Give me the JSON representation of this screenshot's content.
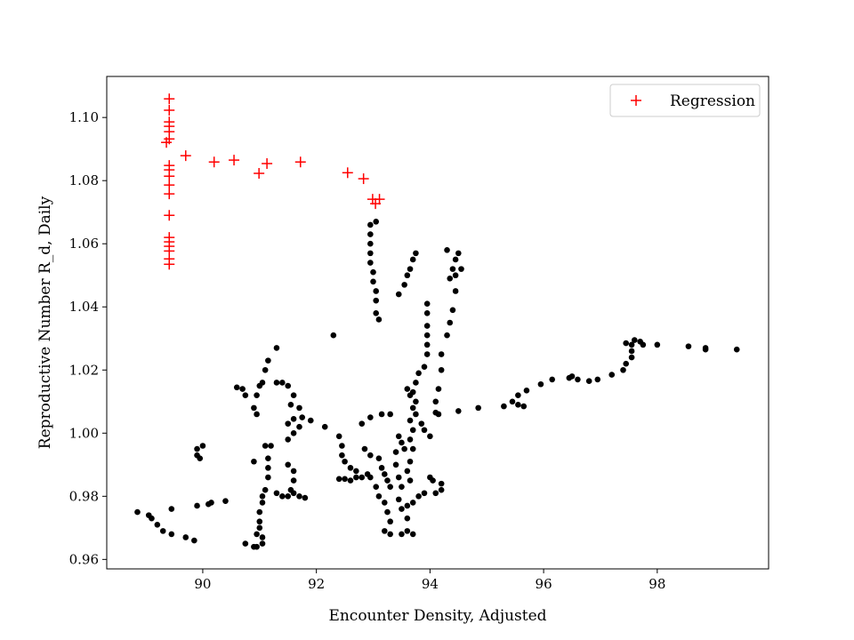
{
  "chart_data": {
    "type": "scatter",
    "title": "",
    "xlabel": "Encounter Density, Adjusted",
    "ylabel": "Reproductive Number R_d, Daily",
    "xlim": [
      88.31,
      99.96
    ],
    "ylim": [
      0.957,
      1.113
    ],
    "xticks": [
      90,
      92,
      94,
      96,
      98
    ],
    "yticks": [
      0.96,
      0.98,
      1.0,
      1.02,
      1.04,
      1.06,
      1.08,
      1.1
    ],
    "xtick_labels": [
      "90",
      "92",
      "94",
      "96",
      "98"
    ],
    "ytick_labels": [
      "0.96",
      "0.98",
      "1.00",
      "1.02",
      "1.04",
      "1.06",
      "1.08",
      "1.10"
    ],
    "grid": false,
    "legend": {
      "position": "top-right",
      "entries": [
        "Regression"
      ]
    },
    "series": [
      {
        "name": "",
        "marker": "circle",
        "color": "#000000",
        "points": [
          [
            88.85,
            0.975
          ],
          [
            89.05,
            0.974
          ],
          [
            89.1,
            0.973
          ],
          [
            89.2,
            0.971
          ],
          [
            89.3,
            0.969
          ],
          [
            89.45,
            0.976
          ],
          [
            89.45,
            0.968
          ],
          [
            89.7,
            0.967
          ],
          [
            89.85,
            0.966
          ],
          [
            89.9,
            0.977
          ],
          [
            90.1,
            0.9775
          ],
          [
            90.15,
            0.978
          ],
          [
            90.4,
            0.9785
          ],
          [
            89.9,
            0.995
          ],
          [
            89.9,
            0.993
          ],
          [
            89.95,
            0.992
          ],
          [
            90.0,
            0.996
          ],
          [
            90.75,
            0.965
          ],
          [
            90.9,
            0.964
          ],
          [
            90.95,
            0.964
          ],
          [
            91.05,
            0.965
          ],
          [
            91.05,
            0.967
          ],
          [
            91.0,
            0.97
          ],
          [
            91.0,
            0.972
          ],
          [
            91.0,
            0.975
          ],
          [
            91.05,
            0.978
          ],
          [
            91.05,
            0.98
          ],
          [
            90.95,
            0.968
          ],
          [
            91.1,
            0.982
          ],
          [
            91.15,
            0.986
          ],
          [
            91.15,
            0.989
          ],
          [
            91.15,
            0.992
          ],
          [
            91.2,
            0.996
          ],
          [
            91.1,
            0.996
          ],
          [
            90.9,
            0.991
          ],
          [
            91.3,
            0.981
          ],
          [
            91.4,
            0.98
          ],
          [
            91.5,
            0.98
          ],
          [
            91.6,
            0.981
          ],
          [
            91.7,
            0.98
          ],
          [
            91.8,
            0.9795
          ],
          [
            91.55,
            0.982
          ],
          [
            91.6,
            0.985
          ],
          [
            91.6,
            0.988
          ],
          [
            91.5,
            0.99
          ],
          [
            91.5,
            0.998
          ],
          [
            91.6,
            1.0
          ],
          [
            91.7,
            1.002
          ],
          [
            91.75,
            1.005
          ],
          [
            91.7,
            1.008
          ],
          [
            91.5,
            1.003
          ],
          [
            91.55,
            1.009
          ],
          [
            91.6,
            1.012
          ],
          [
            91.5,
            1.015
          ],
          [
            91.4,
            1.016
          ],
          [
            91.3,
            1.016
          ],
          [
            91.05,
            1.016
          ],
          [
            91.0,
            1.015
          ],
          [
            90.95,
            1.012
          ],
          [
            90.9,
            1.008
          ],
          [
            90.75,
            1.012
          ],
          [
            90.7,
            1.014
          ],
          [
            90.6,
            1.0145
          ],
          [
            91.1,
            1.02
          ],
          [
            91.15,
            1.023
          ],
          [
            91.3,
            1.027
          ],
          [
            90.95,
            1.006
          ],
          [
            91.6,
            1.0045
          ],
          [
            91.9,
            1.004
          ],
          [
            92.15,
            1.002
          ],
          [
            92.3,
            1.031
          ],
          [
            92.4,
            0.999
          ],
          [
            92.45,
            0.996
          ],
          [
            92.45,
            0.993
          ],
          [
            92.5,
            0.991
          ],
          [
            92.6,
            0.989
          ],
          [
            92.7,
            0.988
          ],
          [
            92.9,
            0.987
          ],
          [
            92.4,
            0.9855
          ],
          [
            92.5,
            0.9855
          ],
          [
            92.6,
            0.985
          ],
          [
            92.7,
            0.986
          ],
          [
            92.8,
            0.986
          ],
          [
            92.95,
            0.986
          ],
          [
            92.85,
            0.995
          ],
          [
            92.95,
            0.993
          ],
          [
            93.1,
            0.992
          ],
          [
            93.15,
            0.989
          ],
          [
            93.2,
            0.987
          ],
          [
            93.25,
            0.985
          ],
          [
            93.3,
            0.983
          ],
          [
            93.05,
            0.983
          ],
          [
            93.1,
            0.98
          ],
          [
            93.2,
            0.978
          ],
          [
            93.25,
            0.975
          ],
          [
            93.3,
            0.972
          ],
          [
            93.2,
            0.969
          ],
          [
            93.3,
            0.968
          ],
          [
            93.5,
            0.968
          ],
          [
            93.6,
            0.969
          ],
          [
            93.7,
            0.968
          ],
          [
            93.6,
            0.973
          ],
          [
            93.5,
            0.976
          ],
          [
            93.6,
            0.977
          ],
          [
            93.7,
            0.978
          ],
          [
            93.8,
            0.98
          ],
          [
            93.9,
            0.981
          ],
          [
            94.1,
            0.981
          ],
          [
            94.2,
            0.982
          ],
          [
            94.2,
            0.984
          ],
          [
            94.0,
            0.986
          ],
          [
            94.05,
            0.985
          ],
          [
            92.8,
            1.003
          ],
          [
            92.95,
            1.005
          ],
          [
            93.15,
            1.006
          ],
          [
            93.3,
            1.006
          ],
          [
            93.45,
            0.999
          ],
          [
            93.5,
            0.997
          ],
          [
            93.55,
            0.995
          ],
          [
            93.4,
            0.994
          ],
          [
            93.4,
            0.99
          ],
          [
            93.45,
            0.986
          ],
          [
            93.5,
            0.983
          ],
          [
            93.45,
            0.979
          ],
          [
            93.65,
            0.985
          ],
          [
            93.6,
            0.988
          ],
          [
            93.65,
            0.991
          ],
          [
            93.7,
            0.995
          ],
          [
            93.65,
            0.998
          ],
          [
            93.7,
            1.001
          ],
          [
            93.65,
            1.004
          ],
          [
            93.7,
            1.008
          ],
          [
            93.75,
            1.01
          ],
          [
            93.7,
            1.013
          ],
          [
            93.75,
            1.016
          ],
          [
            93.8,
            1.019
          ],
          [
            93.9,
            1.021
          ],
          [
            93.95,
            1.025
          ],
          [
            93.95,
            1.028
          ],
          [
            93.95,
            1.031
          ],
          [
            93.95,
            1.034
          ],
          [
            93.95,
            1.038
          ],
          [
            93.95,
            1.041
          ],
          [
            93.6,
            1.014
          ],
          [
            93.65,
            1.012
          ],
          [
            93.75,
            1.006
          ],
          [
            93.85,
            1.003
          ],
          [
            93.9,
            1.001
          ],
          [
            94.0,
            0.999
          ],
          [
            94.15,
            1.006
          ],
          [
            94.1,
            1.01
          ],
          [
            94.15,
            1.014
          ],
          [
            94.2,
            1.02
          ],
          [
            94.2,
            1.025
          ],
          [
            94.3,
            1.031
          ],
          [
            94.35,
            1.035
          ],
          [
            94.4,
            1.039
          ],
          [
            94.45,
            1.045
          ],
          [
            94.45,
            1.05
          ],
          [
            94.4,
            1.052
          ],
          [
            94.45,
            1.055
          ],
          [
            94.55,
            1.052
          ],
          [
            94.35,
            1.049
          ],
          [
            94.5,
            1.057
          ],
          [
            94.3,
            1.058
          ],
          [
            94.1,
            1.0065
          ],
          [
            94.5,
            1.007
          ],
          [
            94.85,
            1.008
          ],
          [
            93.05,
            1.067
          ],
          [
            92.95,
            1.066
          ],
          [
            92.95,
            1.063
          ],
          [
            92.95,
            1.06
          ],
          [
            92.95,
            1.057
          ],
          [
            92.95,
            1.054
          ],
          [
            93.0,
            1.051
          ],
          [
            93.0,
            1.048
          ],
          [
            93.05,
            1.045
          ],
          [
            93.05,
            1.042
          ],
          [
            93.05,
            1.038
          ],
          [
            93.1,
            1.036
          ],
          [
            93.45,
            1.044
          ],
          [
            93.55,
            1.047
          ],
          [
            93.6,
            1.05
          ],
          [
            93.65,
            1.052
          ],
          [
            93.7,
            1.055
          ],
          [
            93.75,
            1.057
          ],
          [
            95.3,
            1.0085
          ],
          [
            95.45,
            1.01
          ],
          [
            95.55,
            1.009
          ],
          [
            95.65,
            1.0085
          ],
          [
            95.55,
            1.012
          ],
          [
            95.7,
            1.0135
          ],
          [
            95.95,
            1.0155
          ],
          [
            96.15,
            1.017
          ],
          [
            96.45,
            1.0175
          ],
          [
            96.5,
            1.018
          ],
          [
            96.6,
            1.017
          ],
          [
            96.8,
            1.0165
          ],
          [
            96.95,
            1.017
          ],
          [
            97.2,
            1.0185
          ],
          [
            97.4,
            1.02
          ],
          [
            97.45,
            1.022
          ],
          [
            97.55,
            1.024
          ],
          [
            97.55,
            1.026
          ],
          [
            97.55,
            1.028
          ],
          [
            97.45,
            1.0285
          ],
          [
            97.6,
            1.0295
          ],
          [
            97.7,
            1.029
          ],
          [
            97.75,
            1.028
          ],
          [
            98.0,
            1.028
          ],
          [
            98.55,
            1.0275
          ],
          [
            98.85,
            1.027
          ],
          [
            98.85,
            1.0265
          ],
          [
            99.4,
            1.0265
          ]
        ]
      },
      {
        "name": "Regression",
        "marker": "plus",
        "color": "#ff0000",
        "points": [
          [
            89.41,
            1.1059
          ],
          [
            89.41,
            1.1023
          ],
          [
            89.41,
            1.0986
          ],
          [
            89.41,
            1.0972
          ],
          [
            89.41,
            1.0955
          ],
          [
            89.41,
            1.0932
          ],
          [
            89.36,
            1.0921
          ],
          [
            89.41,
            1.0848
          ],
          [
            89.41,
            1.0834
          ],
          [
            89.41,
            1.0814
          ],
          [
            89.41,
            1.0786
          ],
          [
            89.41,
            1.0758
          ],
          [
            89.41,
            1.069
          ],
          [
            89.41,
            1.062
          ],
          [
            89.41,
            1.0606
          ],
          [
            89.41,
            1.0592
          ],
          [
            89.41,
            1.0577
          ],
          [
            89.41,
            1.0552
          ],
          [
            89.41,
            1.0535
          ],
          [
            89.7,
            1.0879
          ],
          [
            90.2,
            1.0859
          ],
          [
            90.55,
            1.0865
          ],
          [
            90.99,
            1.0823
          ],
          [
            91.13,
            1.0854
          ],
          [
            91.72,
            1.0859
          ],
          [
            92.55,
            1.0825
          ],
          [
            92.83,
            1.0806
          ],
          [
            92.99,
            1.0741
          ],
          [
            93.11,
            1.0741
          ],
          [
            93.04,
            1.0727
          ]
        ]
      }
    ]
  }
}
